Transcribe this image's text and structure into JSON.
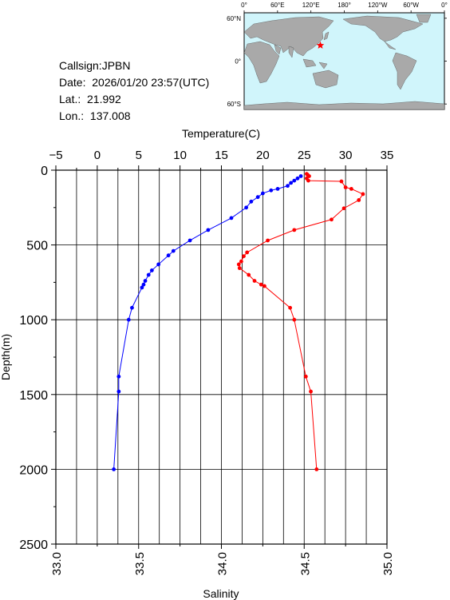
{
  "info": {
    "callsign": "Callsign:JPBN",
    "date": "Date:  2026/01/20 23:57(UTC)",
    "lat": "Lat.:  21.992",
    "lon": "Lon.:  137.008"
  },
  "map": {
    "lon_labels": [
      "0°",
      "60°E",
      "120°E",
      "180°",
      "120°W",
      "60°W",
      "0°"
    ],
    "lat_labels": [
      "60°N",
      "0°",
      "60°S"
    ],
    "marker_lat": 21.992,
    "marker_lon": 137.008,
    "ocean_color": "#d0f5fb",
    "land_color": "#a9a9a9",
    "marker_color": "#ff0000"
  },
  "chart_data": {
    "type": "line",
    "top_axis_label": "Temperature(C)",
    "bottom_axis_label": "Salinity",
    "ylabel": "Depth(m)",
    "temperature_ticks": [
      "−5",
      "0",
      "5",
      "10",
      "15",
      "20",
      "25",
      "30",
      "35"
    ],
    "salinity_ticks": [
      "33.0",
      "33.5",
      "34.0",
      "34.5",
      "35.0"
    ],
    "depth_ticks": [
      "0",
      "500",
      "1000",
      "1500",
      "2000",
      "2500"
    ],
    "temperature_range": [
      -5,
      35
    ],
    "salinity_range": [
      33.0,
      35.0
    ],
    "depth_range": [
      0,
      2500
    ],
    "grid": true,
    "series": [
      {
        "quantity": "temperature",
        "color": "#ff0000",
        "points": [
          [
            25.3,
            25
          ],
          [
            25.4,
            30
          ],
          [
            25.6,
            40
          ],
          [
            25.3,
            55
          ],
          [
            25.5,
            70
          ],
          [
            29.5,
            75
          ],
          [
            30.0,
            115
          ],
          [
            30.7,
            125
          ],
          [
            32.1,
            160
          ],
          [
            31.6,
            200
          ],
          [
            29.8,
            255
          ],
          [
            28.3,
            330
          ],
          [
            23.8,
            400
          ],
          [
            20.6,
            470
          ],
          [
            18.1,
            550
          ],
          [
            17.7,
            575
          ],
          [
            17.4,
            610
          ],
          [
            17.1,
            630
          ],
          [
            17.2,
            655
          ],
          [
            18.3,
            700
          ],
          [
            19.0,
            740
          ],
          [
            19.8,
            765
          ],
          [
            20.2,
            775
          ],
          [
            23.3,
            920
          ],
          [
            23.8,
            1000
          ],
          [
            25.2,
            1380
          ],
          [
            25.8,
            1480
          ],
          [
            26.5,
            2000
          ]
        ]
      },
      {
        "quantity": "salinity",
        "color": "#0000ff",
        "points": [
          [
            34.48,
            40
          ],
          [
            34.46,
            55
          ],
          [
            34.44,
            70
          ],
          [
            34.42,
            85
          ],
          [
            34.4,
            105
          ],
          [
            34.34,
            125
          ],
          [
            34.3,
            135
          ],
          [
            34.25,
            155
          ],
          [
            34.22,
            180
          ],
          [
            34.18,
            210
          ],
          [
            34.15,
            250
          ],
          [
            34.06,
            320
          ],
          [
            33.92,
            400
          ],
          [
            33.81,
            470
          ],
          [
            33.71,
            540
          ],
          [
            33.68,
            570
          ],
          [
            33.62,
            630
          ],
          [
            33.58,
            670
          ],
          [
            33.56,
            700
          ],
          [
            33.54,
            740
          ],
          [
            33.53,
            765
          ],
          [
            33.52,
            785
          ],
          [
            33.46,
            920
          ],
          [
            33.44,
            1000
          ],
          [
            33.38,
            1380
          ],
          [
            33.38,
            1480
          ],
          [
            33.35,
            2000
          ]
        ]
      }
    ]
  }
}
